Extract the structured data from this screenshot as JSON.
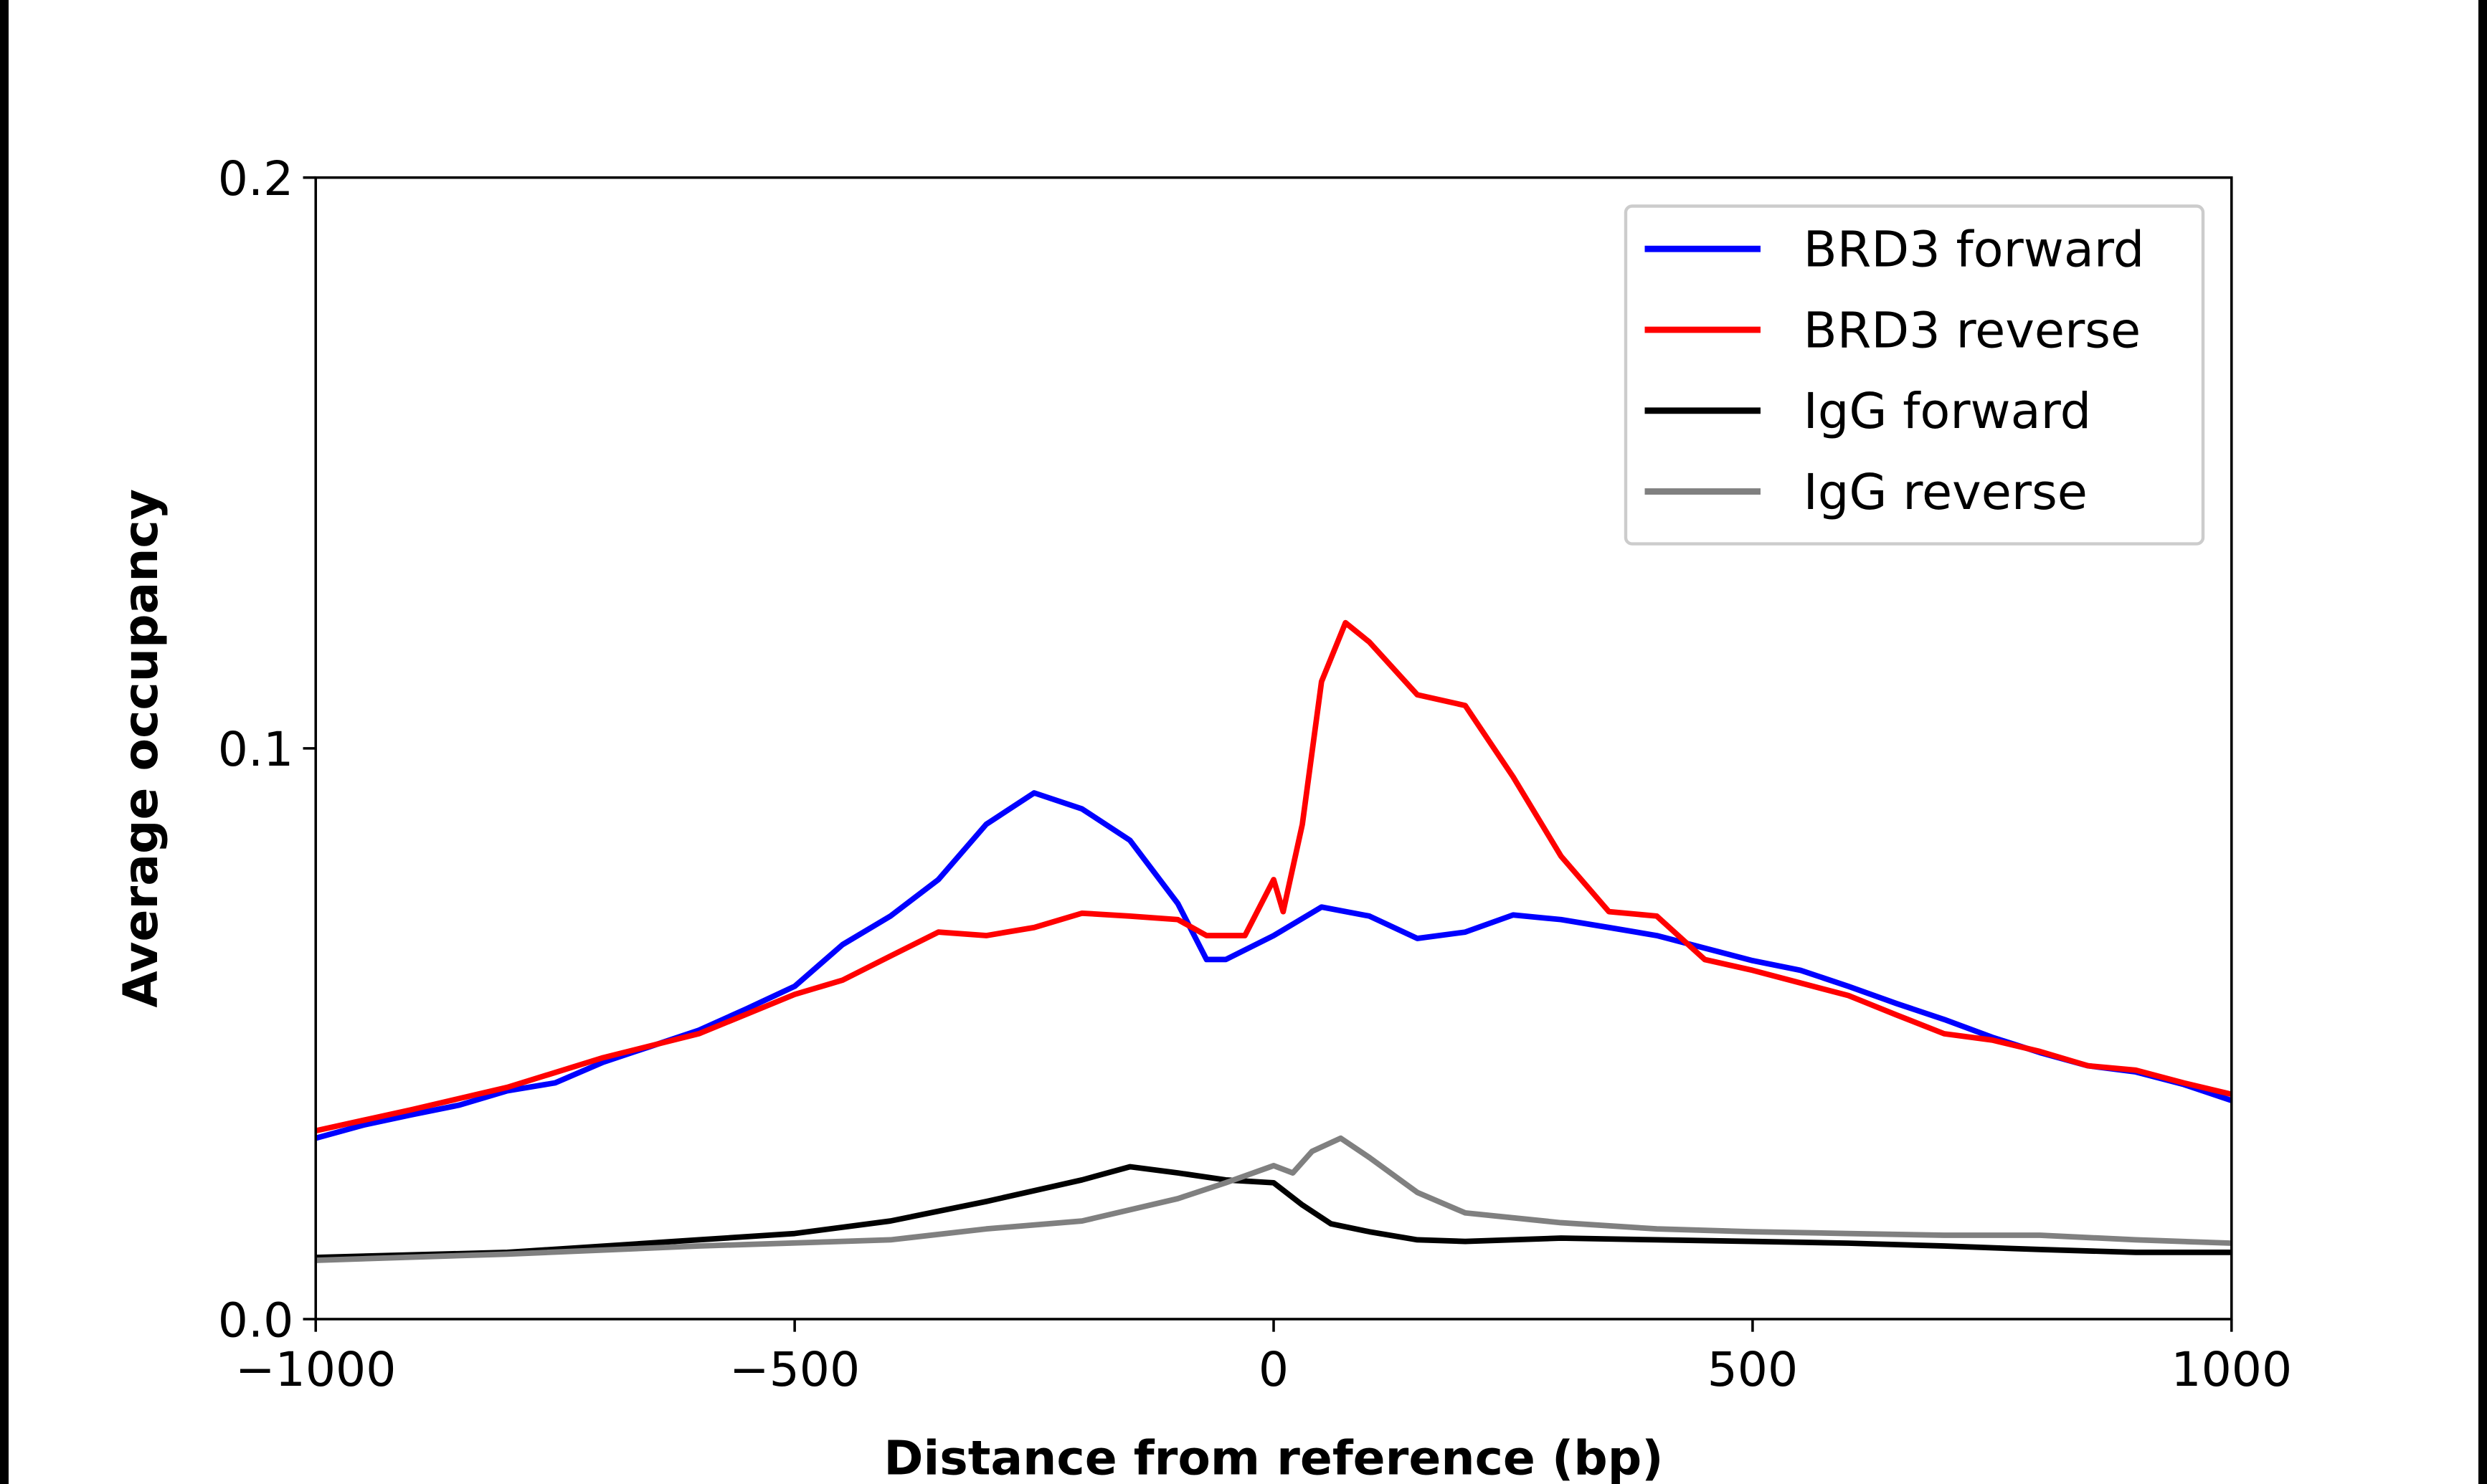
{
  "chart_data": {
    "type": "line",
    "title": "",
    "xlabel": "Distance from reference (bp)",
    "ylabel": "Average occupancy",
    "xlim": [
      -1000,
      1000
    ],
    "ylim": [
      0.0,
      0.2
    ],
    "xticks": [
      -1000,
      -500,
      0,
      500,
      1000
    ],
    "xtick_labels": [
      "−1000",
      "−500",
      "0",
      "500",
      "1000"
    ],
    "yticks": [
      0.0,
      0.1,
      0.2
    ],
    "ytick_labels": [
      "0.0",
      "0.1",
      "0.2"
    ],
    "grid": false,
    "legend_position": "top-right",
    "series": [
      {
        "name": "BRD3 forward",
        "color": "#0000ff",
        "x": [
          -1000,
          -950,
          -900,
          -850,
          -800,
          -750,
          -700,
          -650,
          -600,
          -550,
          -500,
          -450,
          -400,
          -350,
          -300,
          -250,
          -200,
          -150,
          -100,
          -70,
          -50,
          0,
          50,
          100,
          150,
          200,
          250,
          300,
          350,
          400,
          450,
          500,
          550,
          600,
          650,
          700,
          750,
          800,
          850,
          900,
          950,
          1000
        ],
        "y": [
          0.0317,
          0.034,
          0.0358,
          0.0375,
          0.04,
          0.0414,
          0.045,
          0.0478,
          0.0506,
          0.0544,
          0.0583,
          0.0656,
          0.0706,
          0.077,
          0.0867,
          0.0922,
          0.0894,
          0.0839,
          0.0728,
          0.063,
          0.063,
          0.0672,
          0.0722,
          0.0706,
          0.0667,
          0.0678,
          0.0708,
          0.07,
          0.0686,
          0.0672,
          0.065,
          0.0628,
          0.0611,
          0.0583,
          0.0553,
          0.0525,
          0.0494,
          0.0467,
          0.0444,
          0.0433,
          0.0411,
          0.0383
        ]
      },
      {
        "name": "BRD3 reverse",
        "color": "#ff0000",
        "x": [
          -1000,
          -900,
          -800,
          -700,
          -600,
          -500,
          -450,
          -400,
          -350,
          -300,
          -250,
          -200,
          -150,
          -100,
          -70,
          -30,
          0,
          10,
          30,
          50,
          75,
          100,
          150,
          200,
          250,
          300,
          350,
          400,
          450,
          500,
          550,
          600,
          650,
          700,
          750,
          800,
          850,
          900,
          950,
          1000
        ],
        "y": [
          0.033,
          0.0367,
          0.0406,
          0.0458,
          0.05,
          0.0569,
          0.0594,
          0.0636,
          0.0678,
          0.0672,
          0.0686,
          0.0711,
          0.0706,
          0.07,
          0.0672,
          0.0672,
          0.077,
          0.0714,
          0.0867,
          0.1117,
          0.122,
          0.1186,
          0.1094,
          0.1075,
          0.095,
          0.0811,
          0.0714,
          0.0706,
          0.063,
          0.0611,
          0.0589,
          0.0567,
          0.0533,
          0.05,
          0.0489,
          0.0469,
          0.0444,
          0.0436,
          0.0414,
          0.0394
        ]
      },
      {
        "name": "IgG forward",
        "color": "#000000",
        "x": [
          -1000,
          -800,
          -600,
          -500,
          -400,
          -300,
          -200,
          -150,
          -100,
          -50,
          0,
          30,
          60,
          100,
          150,
          200,
          300,
          400,
          500,
          600,
          700,
          800,
          900,
          1000
        ],
        "y": [
          0.0108,
          0.0117,
          0.0139,
          0.015,
          0.0172,
          0.0206,
          0.0244,
          0.0267,
          0.0256,
          0.0244,
          0.0239,
          0.02,
          0.0167,
          0.0153,
          0.0139,
          0.0136,
          0.0142,
          0.0139,
          0.0136,
          0.0133,
          0.0128,
          0.0122,
          0.0117,
          0.0117
        ]
      },
      {
        "name": "IgG reverse",
        "color": "#808080",
        "x": [
          -1000,
          -800,
          -600,
          -400,
          -300,
          -200,
          -100,
          -50,
          0,
          20,
          40,
          70,
          100,
          150,
          200,
          300,
          400,
          500,
          600,
          700,
          800,
          900,
          1000
        ],
        "y": [
          0.0103,
          0.0114,
          0.0128,
          0.0139,
          0.0158,
          0.0172,
          0.0211,
          0.0239,
          0.0269,
          0.0256,
          0.0294,
          0.0317,
          0.0283,
          0.0222,
          0.0186,
          0.0169,
          0.0158,
          0.0153,
          0.015,
          0.0147,
          0.0147,
          0.0139,
          0.0133
        ]
      }
    ]
  }
}
